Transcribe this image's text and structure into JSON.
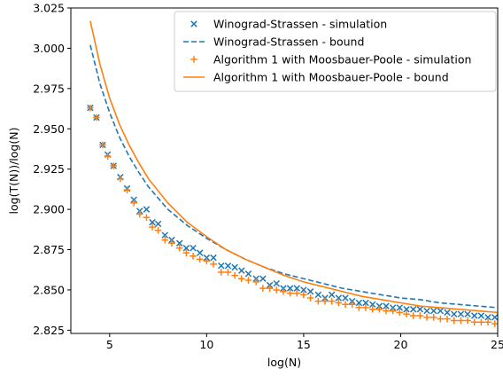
{
  "chart_data": {
    "type": "scatter",
    "title": "",
    "xlabel": "log(N)",
    "ylabel": "log(T(N))/log(N)",
    "xlim": [
      3.0,
      25.0
    ],
    "ylim": [
      2.823,
      3.025
    ],
    "xticks": [
      5,
      10,
      15,
      20,
      25
    ],
    "yticks": [
      2.825,
      2.85,
      2.875,
      2.9,
      2.925,
      2.95,
      2.975,
      3.0,
      3.025
    ],
    "grid": false,
    "legend_position": "top-right",
    "series": [
      {
        "name": "Winograd-Strassen - simulation",
        "kind": "scatter",
        "marker": "x",
        "color": "#1f77b4",
        "points": [
          [
            4.0,
            2.963
          ],
          [
            4.32,
            2.957
          ],
          [
            4.64,
            2.94
          ],
          [
            4.9,
            2.934
          ],
          [
            5.2,
            2.927
          ],
          [
            5.55,
            2.92
          ],
          [
            5.9,
            2.913
          ],
          [
            6.25,
            2.906
          ],
          [
            6.55,
            2.899
          ],
          [
            6.9,
            2.9
          ],
          [
            7.2,
            2.892
          ],
          [
            7.5,
            2.891
          ],
          [
            7.85,
            2.884
          ],
          [
            8.2,
            2.881
          ],
          [
            8.6,
            2.879
          ],
          [
            8.95,
            2.876
          ],
          [
            9.3,
            2.876
          ],
          [
            9.65,
            2.873
          ],
          [
            10.0,
            2.87
          ],
          [
            10.35,
            2.87
          ],
          [
            10.75,
            2.865
          ],
          [
            11.1,
            2.865
          ],
          [
            11.45,
            2.864
          ],
          [
            11.8,
            2.862
          ],
          [
            12.15,
            2.86
          ],
          [
            12.55,
            2.857
          ],
          [
            12.9,
            2.857
          ],
          [
            13.25,
            2.853
          ],
          [
            13.6,
            2.854
          ],
          [
            13.95,
            2.851
          ],
          [
            14.3,
            2.851
          ],
          [
            14.65,
            2.851
          ],
          [
            15.0,
            2.85
          ],
          [
            15.35,
            2.849
          ],
          [
            15.75,
            2.847
          ],
          [
            16.1,
            2.845
          ],
          [
            16.45,
            2.847
          ],
          [
            16.8,
            2.845
          ],
          [
            17.15,
            2.845
          ],
          [
            17.5,
            2.843
          ],
          [
            17.85,
            2.842
          ],
          [
            18.2,
            2.842
          ],
          [
            18.55,
            2.841
          ],
          [
            18.9,
            2.84
          ],
          [
            19.25,
            2.84
          ],
          [
            19.6,
            2.839
          ],
          [
            19.95,
            2.839
          ],
          [
            20.3,
            2.838
          ],
          [
            20.65,
            2.838
          ],
          [
            21.0,
            2.838
          ],
          [
            21.35,
            2.837
          ],
          [
            21.7,
            2.837
          ],
          [
            22.05,
            2.837
          ],
          [
            22.4,
            2.836
          ],
          [
            22.75,
            2.835
          ],
          [
            23.1,
            2.835
          ],
          [
            23.45,
            2.835
          ],
          [
            23.8,
            2.834
          ],
          [
            24.15,
            2.834
          ],
          [
            24.5,
            2.833
          ],
          [
            24.85,
            2.833
          ]
        ]
      },
      {
        "name": "Winograd-Strassen - bound",
        "kind": "line",
        "dash": "dashed",
        "color": "#1f77b4",
        "points": [
          [
            4.0,
            3.002
          ],
          [
            4.5,
            2.978
          ],
          [
            5.0,
            2.96
          ],
          [
            5.5,
            2.945
          ],
          [
            6.0,
            2.933
          ],
          [
            6.5,
            2.923
          ],
          [
            7.0,
            2.914
          ],
          [
            8.0,
            2.9
          ],
          [
            9.0,
            2.89
          ],
          [
            10.0,
            2.882
          ],
          [
            11.0,
            2.875
          ],
          [
            12.0,
            2.869
          ],
          [
            13.0,
            2.864
          ],
          [
            14.0,
            2.86
          ],
          [
            15.0,
            2.857
          ],
          [
            16.0,
            2.854
          ],
          [
            17.0,
            2.851
          ],
          [
            18.0,
            2.849
          ],
          [
            19.0,
            2.847
          ],
          [
            20.0,
            2.845
          ],
          [
            21.0,
            2.844
          ],
          [
            22.0,
            2.842
          ],
          [
            23.0,
            2.841
          ],
          [
            24.0,
            2.84
          ],
          [
            25.0,
            2.839
          ]
        ]
      },
      {
        "name": "Algorithm 1 with Moosbauer-Poole - simulation",
        "kind": "scatter",
        "marker": "+",
        "color": "#ff7f0e",
        "points": [
          [
            4.0,
            2.963
          ],
          [
            4.32,
            2.957
          ],
          [
            4.64,
            2.94
          ],
          [
            4.9,
            2.933
          ],
          [
            5.2,
            2.927
          ],
          [
            5.55,
            2.919
          ],
          [
            5.9,
            2.912
          ],
          [
            6.25,
            2.904
          ],
          [
            6.55,
            2.897
          ],
          [
            6.9,
            2.895
          ],
          [
            7.2,
            2.889
          ],
          [
            7.5,
            2.887
          ],
          [
            7.85,
            2.881
          ],
          [
            8.2,
            2.879
          ],
          [
            8.6,
            2.876
          ],
          [
            8.95,
            2.873
          ],
          [
            9.3,
            2.871
          ],
          [
            9.65,
            2.869
          ],
          [
            10.0,
            2.868
          ],
          [
            10.35,
            2.866
          ],
          [
            10.75,
            2.861
          ],
          [
            11.1,
            2.861
          ],
          [
            11.45,
            2.859
          ],
          [
            11.8,
            2.857
          ],
          [
            12.15,
            2.856
          ],
          [
            12.55,
            2.855
          ],
          [
            12.9,
            2.851
          ],
          [
            13.25,
            2.851
          ],
          [
            13.6,
            2.85
          ],
          [
            13.95,
            2.849
          ],
          [
            14.3,
            2.848
          ],
          [
            14.65,
            2.848
          ],
          [
            15.0,
            2.847
          ],
          [
            15.35,
            2.845
          ],
          [
            15.75,
            2.843
          ],
          [
            16.1,
            2.843
          ],
          [
            16.45,
            2.843
          ],
          [
            16.8,
            2.842
          ],
          [
            17.15,
            2.841
          ],
          [
            17.5,
            2.841
          ],
          [
            17.85,
            2.839
          ],
          [
            18.2,
            2.839
          ],
          [
            18.55,
            2.838
          ],
          [
            18.9,
            2.838
          ],
          [
            19.25,
            2.837
          ],
          [
            19.6,
            2.837
          ],
          [
            19.95,
            2.836
          ],
          [
            20.3,
            2.835
          ],
          [
            20.65,
            2.834
          ],
          [
            21.0,
            2.834
          ],
          [
            21.35,
            2.833
          ],
          [
            21.7,
            2.833
          ],
          [
            22.05,
            2.832
          ],
          [
            22.4,
            2.832
          ],
          [
            22.75,
            2.831
          ],
          [
            23.1,
            2.831
          ],
          [
            23.45,
            2.831
          ],
          [
            23.8,
            2.83
          ],
          [
            24.15,
            2.83
          ],
          [
            24.5,
            2.83
          ],
          [
            24.85,
            2.829
          ]
        ]
      },
      {
        "name": "Algorithm 1 with Moosbauer-Poole - bound",
        "kind": "line",
        "dash": "solid",
        "color": "#ff7f0e",
        "points": [
          [
            4.0,
            3.017
          ],
          [
            4.5,
            2.99
          ],
          [
            5.0,
            2.969
          ],
          [
            5.5,
            2.953
          ],
          [
            6.0,
            2.94
          ],
          [
            6.5,
            2.929
          ],
          [
            7.0,
            2.919
          ],
          [
            8.0,
            2.904
          ],
          [
            9.0,
            2.892
          ],
          [
            10.0,
            2.883
          ],
          [
            11.0,
            2.875
          ],
          [
            12.0,
            2.869
          ],
          [
            13.0,
            2.864
          ],
          [
            14.0,
            2.859
          ],
          [
            15.0,
            2.855
          ],
          [
            16.0,
            2.852
          ],
          [
            17.0,
            2.849
          ],
          [
            18.0,
            2.846
          ],
          [
            19.0,
            2.844
          ],
          [
            20.0,
            2.842
          ],
          [
            21.0,
            2.84
          ],
          [
            22.0,
            2.839
          ],
          [
            23.0,
            2.838
          ],
          [
            24.0,
            2.837
          ],
          [
            25.0,
            2.836
          ]
        ]
      }
    ]
  }
}
